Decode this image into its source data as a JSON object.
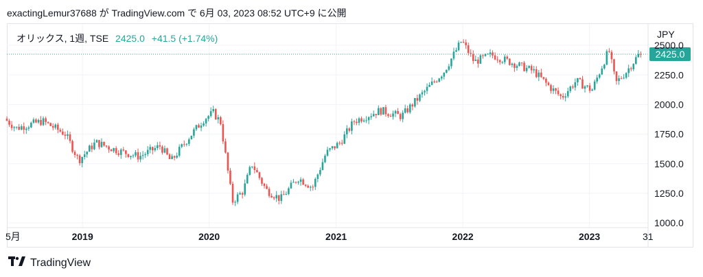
{
  "caption": "exactingLemur37688 が TradingView.com で 6月 03, 2023 08:52 UTC+9 に公開",
  "legend": {
    "symbol": "オリックス, 1週, TSE",
    "last": "2425.0",
    "change": "+41.5 (+1.74%)"
  },
  "currency": "JPY",
  "price_badge": "2425.0",
  "footer_brand": "TradingView",
  "colors": {
    "up": "#26a69a",
    "down": "#ef5350",
    "grid": "#f0f3fa",
    "axis_text": "#131722"
  },
  "chart_data": {
    "type": "candlestick",
    "interval": "1週",
    "y_axis": {
      "ticks": [
        1000.0,
        1250.0,
        1500.0,
        1750.0,
        2000.0,
        2250.0,
        2500.0
      ],
      "tick_labels": [
        "1000.0",
        "1250.0",
        "1500.0",
        "1750.0",
        "2000.0",
        "2250.0",
        "2500.0"
      ],
      "range": [
        960,
        2680
      ]
    },
    "x_axis": {
      "range": [
        "2018-05-28",
        "2023-06-19"
      ],
      "ticks": [
        {
          "date": "2018-05-28",
          "label": "5月"
        },
        {
          "date": "2019-01-01",
          "label": "2019"
        },
        {
          "date": "2020-01-01",
          "label": "2020"
        },
        {
          "date": "2021-01-01",
          "label": "2021"
        },
        {
          "date": "2022-01-01",
          "label": "2022"
        },
        {
          "date": "2023-01-01",
          "label": "2023"
        },
        {
          "date": "2023-06-19",
          "label": "31"
        }
      ]
    },
    "last_price_line": 2425.0,
    "anchors": [
      [
        "2018-05-28",
        1880
      ],
      [
        "2018-07-01",
        1800
      ],
      [
        "2018-09-15",
        1860
      ],
      [
        "2018-11-20",
        1750
      ],
      [
        "2018-12-28",
        1530
      ],
      [
        "2019-02-15",
        1680
      ],
      [
        "2019-04-20",
        1610
      ],
      [
        "2019-06-20",
        1560
      ],
      [
        "2019-08-20",
        1650
      ],
      [
        "2019-09-20",
        1520
      ],
      [
        "2019-11-10",
        1720
      ],
      [
        "2019-12-25",
        1880
      ],
      [
        "2020-01-20",
        1930
      ],
      [
        "2020-02-10",
        1850
      ],
      [
        "2020-03-15",
        1180
      ],
      [
        "2020-04-15",
        1270
      ],
      [
        "2020-05-10",
        1500
      ],
      [
        "2020-06-20",
        1280
      ],
      [
        "2020-08-01",
        1200
      ],
      [
        "2020-09-20",
        1380
      ],
      [
        "2020-11-01",
        1300
      ],
      [
        "2020-12-10",
        1590
      ],
      [
        "2021-01-20",
        1680
      ],
      [
        "2021-03-01",
        1860
      ],
      [
        "2021-05-15",
        1950
      ],
      [
        "2021-07-15",
        1900
      ],
      [
        "2021-09-10",
        2080
      ],
      [
        "2021-11-15",
        2280
      ],
      [
        "2022-01-05",
        2540
      ],
      [
        "2022-02-10",
        2360
      ],
      [
        "2022-04-01",
        2420
      ],
      [
        "2022-06-01",
        2350
      ],
      [
        "2022-08-01",
        2280
      ],
      [
        "2022-09-15",
        2150
      ],
      [
        "2022-10-20",
        2060
      ],
      [
        "2022-12-01",
        2200
      ],
      [
        "2023-01-15",
        2120
      ],
      [
        "2023-03-05",
        2460
      ],
      [
        "2023-03-25",
        2180
      ],
      [
        "2023-04-25",
        2280
      ],
      [
        "2023-05-31",
        2425
      ]
    ]
  }
}
